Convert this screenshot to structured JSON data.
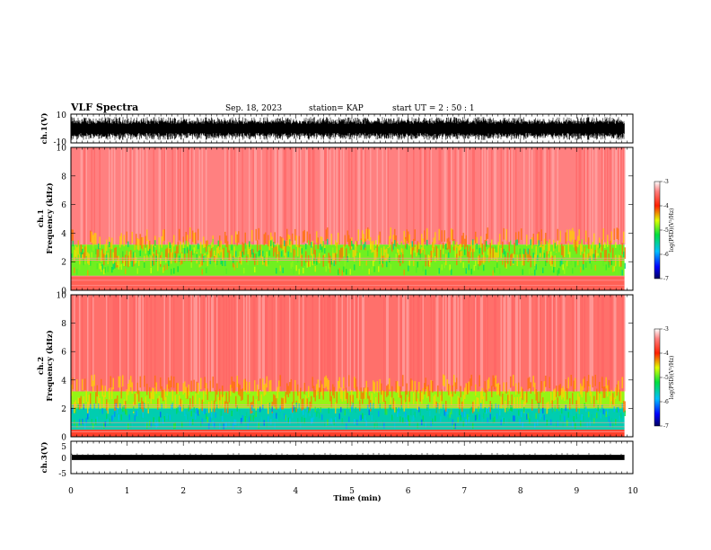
{
  "header": {
    "title": "VLF Spectra",
    "date": "Sep. 18, 2023",
    "station": "station= KAP",
    "start": "start  UT =   2 : 50 : 1"
  },
  "chart_data": [
    {
      "type": "line",
      "name": "ch1-waveform",
      "ylabel": "ch.1(V)",
      "ylim": [
        -10,
        10
      ],
      "yticks": [
        "10",
        "-10"
      ],
      "xlim": [
        0,
        10
      ],
      "x_data_end": 9.85,
      "description_values": {
        "typical_min": -8,
        "typical_max": 8,
        "mean": 0
      }
    },
    {
      "type": "heatmap",
      "name": "ch1-spectrogram",
      "ylabel": "ch.1\nFrequency  (kHz)",
      "ylim": [
        0,
        10
      ],
      "yticks": [
        "0",
        "2",
        "4",
        "6",
        "8",
        "10"
      ],
      "xlim": [
        0,
        10
      ],
      "x_data_end": 9.85,
      "colorbar": {
        "label": "log(PSD)(V²/Hz)",
        "range": [
          -7,
          -3
        ],
        "ticks": [
          "-3",
          "-4",
          "-5",
          "-6",
          "-7"
        ]
      },
      "bands": [
        {
          "from_khz": 0,
          "to_khz": 1.0,
          "level": -3.6
        },
        {
          "from_khz": 1.0,
          "to_khz": 3.2,
          "level": -4.9
        },
        {
          "from_khz": 3.2,
          "to_khz": 10,
          "level": -3.4
        }
      ]
    },
    {
      "type": "heatmap",
      "name": "ch2-spectrogram",
      "ylabel": "ch.2\nFrequency  (kHz)",
      "ylim": [
        0,
        10
      ],
      "yticks": [
        "0",
        "2",
        "4",
        "6",
        "8",
        "10"
      ],
      "xlim": [
        0,
        10
      ],
      "x_data_end": 9.85,
      "colorbar": {
        "label": "log(PSD)(V²/Hz)",
        "range": [
          -7,
          -3
        ],
        "ticks": [
          "-3",
          "-4",
          "-5",
          "-6",
          "-7"
        ]
      },
      "bands": [
        {
          "from_khz": 0,
          "to_khz": 0.5,
          "level": -3.8
        },
        {
          "from_khz": 0.5,
          "to_khz": 2.0,
          "level": -5.6
        },
        {
          "from_khz": 2.0,
          "to_khz": 3.2,
          "level": -4.8
        },
        {
          "from_khz": 3.2,
          "to_khz": 10,
          "level": -3.5
        }
      ]
    },
    {
      "type": "line",
      "name": "ch3-waveform",
      "ylabel": "ch.3(V)",
      "ylim": [
        -5,
        5
      ],
      "yticks": [
        "5",
        "0",
        "-5"
      ],
      "xlim": [
        0,
        10
      ],
      "x_data_end": 9.85,
      "description_values": {
        "mean": 0,
        "amplitude": 0.8
      }
    }
  ],
  "xaxis": {
    "label": "Time  (min)",
    "ticks": [
      "0",
      "1",
      "2",
      "3",
      "4",
      "5",
      "6",
      "7",
      "8",
      "9",
      "10"
    ]
  }
}
